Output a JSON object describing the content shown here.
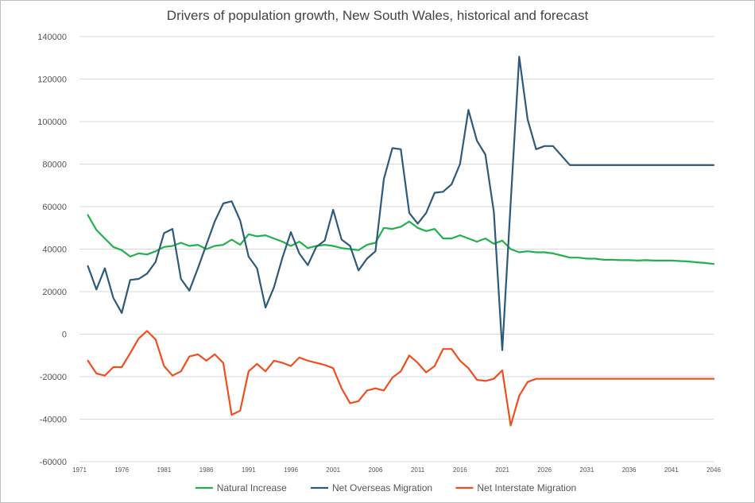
{
  "chart_data": {
    "type": "line",
    "title": "Drivers of population growth, New South Wales, historical and forecast",
    "xlabel": "",
    "ylabel": "",
    "xlim": [
      1971,
      2046
    ],
    "ylim": [
      -60000,
      140000
    ],
    "y_ticks": [
      140000,
      120000,
      100000,
      80000,
      60000,
      40000,
      20000,
      0,
      -20000,
      -40000,
      -60000
    ],
    "x_ticks": [
      1971,
      1976,
      1981,
      1986,
      1991,
      1996,
      2001,
      2006,
      2011,
      2016,
      2021,
      2026,
      2031,
      2036,
      2041,
      2046
    ],
    "grid": true,
    "legend_position": "bottom",
    "x": [
      1972,
      1973,
      1974,
      1975,
      1976,
      1977,
      1978,
      1979,
      1980,
      1981,
      1982,
      1983,
      1984,
      1985,
      1986,
      1987,
      1988,
      1989,
      1990,
      1991,
      1992,
      1993,
      1994,
      1995,
      1996,
      1997,
      1998,
      1999,
      2000,
      2001,
      2002,
      2003,
      2004,
      2005,
      2006,
      2007,
      2008,
      2009,
      2010,
      2011,
      2012,
      2013,
      2014,
      2015,
      2016,
      2017,
      2018,
      2019,
      2020,
      2021,
      2022,
      2023,
      2024,
      2025,
      2026,
      2027,
      2028,
      2029,
      2030,
      2031,
      2032,
      2033,
      2034,
      2035,
      2036,
      2037,
      2038,
      2039,
      2040,
      2041,
      2042,
      2043,
      2044,
      2045,
      2046
    ],
    "series": [
      {
        "name": "Natural Increase",
        "color": "#22b14c",
        "values": [
          56000,
          49000,
          45000,
          41000,
          39500,
          36500,
          38000,
          37500,
          39000,
          41000,
          41500,
          43000,
          41500,
          42000,
          40000,
          41500,
          42000,
          44500,
          42000,
          47000,
          46000,
          46500,
          45000,
          43500,
          41500,
          43500,
          40500,
          41500,
          42000,
          41500,
          40500,
          40000,
          39500,
          42000,
          43000,
          50000,
          49500,
          50500,
          53000,
          50000,
          48500,
          49500,
          45000,
          45000,
          46500,
          45000,
          43500,
          45000,
          42500,
          44000,
          40000,
          38500,
          39000,
          38500,
          38500,
          38000,
          37000,
          36000,
          36000,
          35500,
          35500,
          35000,
          35000,
          34800,
          34800,
          34600,
          34800,
          34600,
          34600,
          34600,
          34400,
          34200,
          33800,
          33500,
          33000
        ]
      },
      {
        "name": "Net Overseas Migration",
        "color": "#2e5a7a",
        "values": [
          32000,
          21000,
          31000,
          17000,
          10000,
          25500,
          26000,
          28500,
          34000,
          47500,
          49500,
          26000,
          20500,
          31000,
          42000,
          53000,
          61500,
          62500,
          53500,
          36500,
          31000,
          12500,
          22000,
          36000,
          48000,
          38000,
          32500,
          41000,
          44000,
          58500,
          44500,
          41500,
          30000,
          35500,
          39000,
          73000,
          87500,
          87000,
          57000,
          52000,
          57000,
          66500,
          67000,
          70500,
          80000,
          105500,
          91000,
          84500,
          57500,
          -7500,
          62000,
          130500,
          101000,
          87000,
          88500,
          88500,
          84000,
          79500,
          79500,
          79500,
          79500,
          79500,
          79500,
          79500,
          79500,
          79500,
          79500,
          79500,
          79500,
          79500,
          79500,
          79500,
          79500,
          79500,
          79500
        ]
      },
      {
        "name": "Net Interstate Migration",
        "color": "#f04e1e",
        "values": [
          -12500,
          -18500,
          -19500,
          -15500,
          -15500,
          -9000,
          -2000,
          1500,
          -2500,
          -15000,
          -19500,
          -17500,
          -10500,
          -9500,
          -12500,
          -9500,
          -13500,
          -38000,
          -36000,
          -17500,
          -14000,
          -17500,
          -12500,
          -13500,
          -15000,
          -11000,
          -12500,
          -13500,
          -14500,
          -16000,
          -25500,
          -32500,
          -31500,
          -26500,
          -25500,
          -26500,
          -20500,
          -17500,
          -10000,
          -13500,
          -18000,
          -15000,
          -7000,
          -7000,
          -12500,
          -16000,
          -21500,
          -22000,
          -21000,
          -17000,
          -43000,
          -29000,
          -22500,
          -21000,
          -21000,
          -21000,
          -21000,
          -21000,
          -21000,
          -21000,
          -21000,
          -21000,
          -21000,
          -21000,
          -21000,
          -21000,
          -21000,
          -21000,
          -21000,
          -21000,
          -21000,
          -21000,
          -21000,
          -21000,
          -21000
        ]
      }
    ]
  }
}
